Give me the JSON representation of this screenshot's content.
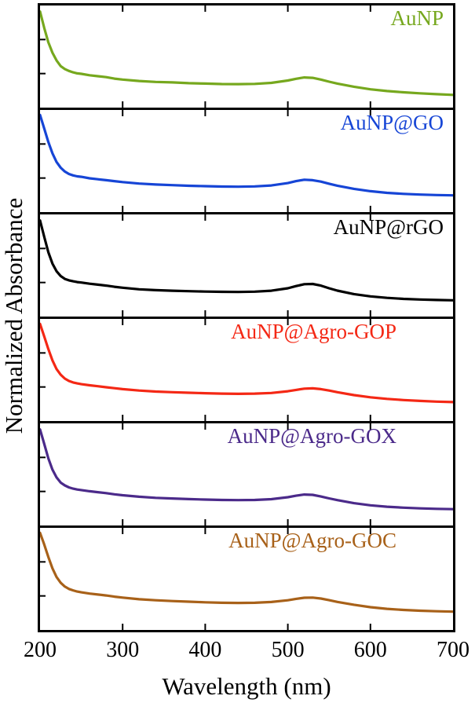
{
  "chart_data": {
    "type": "line",
    "title": "",
    "xlabel": "Wavelength (nm)",
    "ylabel": "Normalized Absorbance",
    "xlim": [
      200,
      700
    ],
    "ylim": [
      0,
      1
    ],
    "grid": false,
    "legend_position": "inside-panel-top-right",
    "x_tick_labels": [
      "200",
      "300",
      "400",
      "500",
      "600",
      "700"
    ],
    "x_tick_values": [
      200,
      300,
      400,
      500,
      600,
      700
    ],
    "minor_x_ticks": [
      300,
      400,
      500,
      600
    ],
    "x": [
      200,
      205,
      210,
      215,
      220,
      225,
      230,
      235,
      240,
      245,
      250,
      260,
      270,
      280,
      290,
      300,
      320,
      340,
      360,
      380,
      400,
      420,
      440,
      460,
      480,
      500,
      510,
      520,
      530,
      540,
      550,
      560,
      580,
      600,
      620,
      640,
      660,
      680,
      700
    ],
    "series": [
      {
        "name": "AuNP",
        "color": "#76a81e",
        "peak_nm": 520,
        "values": [
          0.97,
          0.8,
          0.65,
          0.54,
          0.46,
          0.4,
          0.37,
          0.35,
          0.335,
          0.325,
          0.32,
          0.305,
          0.295,
          0.285,
          0.27,
          0.26,
          0.245,
          0.235,
          0.23,
          0.222,
          0.218,
          0.213,
          0.212,
          0.215,
          0.225,
          0.25,
          0.268,
          0.282,
          0.278,
          0.26,
          0.238,
          0.218,
          0.185,
          0.158,
          0.14,
          0.127,
          0.116,
          0.107,
          0.1
        ]
      },
      {
        "name": "AuNP@GO",
        "color": "#1645d6",
        "peak_nm": 525,
        "values": [
          0.98,
          0.84,
          0.7,
          0.58,
          0.49,
          0.43,
          0.39,
          0.365,
          0.35,
          0.34,
          0.335,
          0.32,
          0.31,
          0.3,
          0.29,
          0.28,
          0.265,
          0.255,
          0.248,
          0.242,
          0.238,
          0.234,
          0.232,
          0.235,
          0.245,
          0.27,
          0.29,
          0.305,
          0.3,
          0.285,
          0.263,
          0.243,
          0.21,
          0.185,
          0.168,
          0.157,
          0.15,
          0.145,
          0.142
        ]
      },
      {
        "name": "AuNP@rGO",
        "color": "#000000",
        "peak_nm": 530,
        "values": [
          0.97,
          0.8,
          0.64,
          0.52,
          0.44,
          0.39,
          0.36,
          0.345,
          0.335,
          0.327,
          0.322,
          0.31,
          0.3,
          0.29,
          0.278,
          0.268,
          0.252,
          0.243,
          0.237,
          0.232,
          0.228,
          0.225,
          0.224,
          0.227,
          0.237,
          0.262,
          0.285,
          0.305,
          0.307,
          0.29,
          0.262,
          0.238,
          0.202,
          0.178,
          0.162,
          0.152,
          0.145,
          0.14,
          0.137
        ]
      },
      {
        "name": "AuNP@Agro-GOP",
        "color": "#f42815",
        "peak_nm": 535,
        "values": [
          0.98,
          0.85,
          0.72,
          0.6,
          0.51,
          0.45,
          0.41,
          0.385,
          0.37,
          0.36,
          0.352,
          0.34,
          0.33,
          0.32,
          0.31,
          0.3,
          0.285,
          0.275,
          0.268,
          0.262,
          0.257,
          0.253,
          0.251,
          0.253,
          0.26,
          0.278,
          0.292,
          0.305,
          0.308,
          0.3,
          0.285,
          0.268,
          0.238,
          0.215,
          0.198,
          0.186,
          0.177,
          0.17,
          0.165
        ]
      },
      {
        "name": "AuNP@Agro-GOX",
        "color": "#4b2a8a",
        "peak_nm": 525,
        "values": [
          0.97,
          0.82,
          0.67,
          0.55,
          0.47,
          0.415,
          0.385,
          0.365,
          0.352,
          0.343,
          0.337,
          0.325,
          0.315,
          0.305,
          0.293,
          0.283,
          0.267,
          0.256,
          0.249,
          0.243,
          0.238,
          0.234,
          0.232,
          0.234,
          0.242,
          0.262,
          0.278,
          0.29,
          0.287,
          0.27,
          0.25,
          0.232,
          0.2,
          0.178,
          0.163,
          0.153,
          0.146,
          0.141,
          0.138
        ]
      },
      {
        "name": "AuNP@Agro-GOC",
        "color": "#a86119",
        "peak_nm": 530,
        "values": [
          0.98,
          0.86,
          0.73,
          0.61,
          0.52,
          0.46,
          0.42,
          0.395,
          0.38,
          0.368,
          0.36,
          0.347,
          0.337,
          0.327,
          0.315,
          0.305,
          0.288,
          0.277,
          0.269,
          0.262,
          0.256,
          0.251,
          0.249,
          0.251,
          0.259,
          0.277,
          0.292,
          0.303,
          0.305,
          0.295,
          0.278,
          0.26,
          0.23,
          0.205,
          0.188,
          0.176,
          0.168,
          0.162,
          0.158
        ]
      }
    ]
  }
}
